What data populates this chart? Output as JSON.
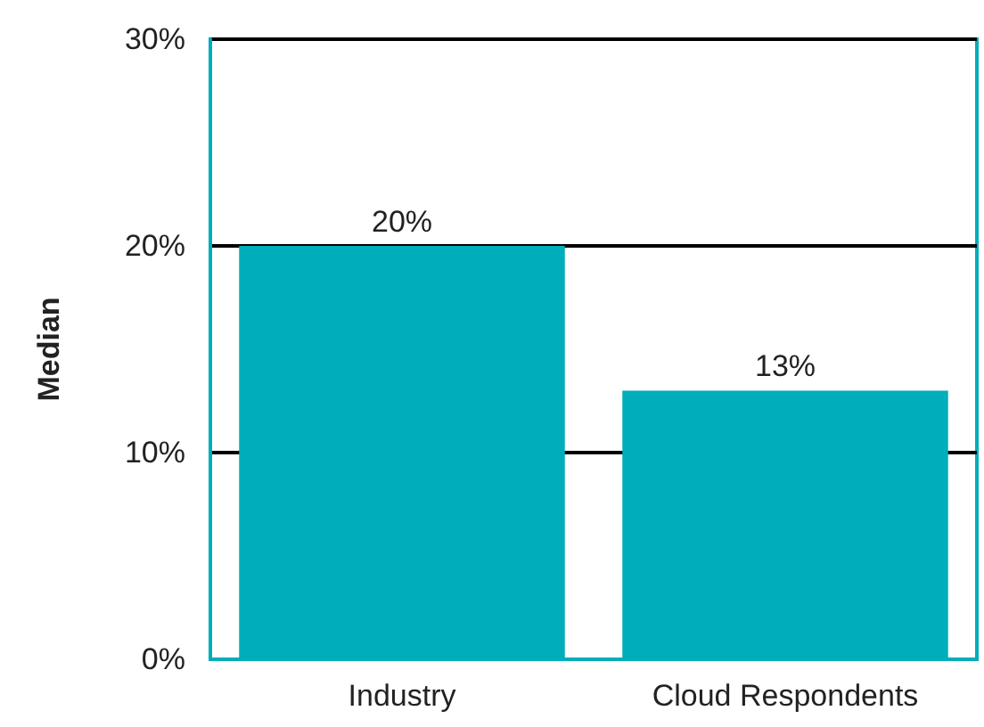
{
  "chart_data": {
    "type": "bar",
    "ylabel": "Median",
    "categories": [
      "Industry",
      "Cloud Respondents"
    ],
    "values": [
      20,
      13
    ],
    "color": "#00adbb",
    "value_labels": [
      "20%",
      "13%"
    ],
    "ylim": [
      0,
      30
    ],
    "yticks": [
      {
        "value": 0,
        "label": "0%"
      },
      {
        "value": 10,
        "label": "10%"
      },
      {
        "value": 20,
        "label": "20%"
      },
      {
        "value": 30,
        "label": "30%"
      }
    ],
    "grid": "y"
  }
}
